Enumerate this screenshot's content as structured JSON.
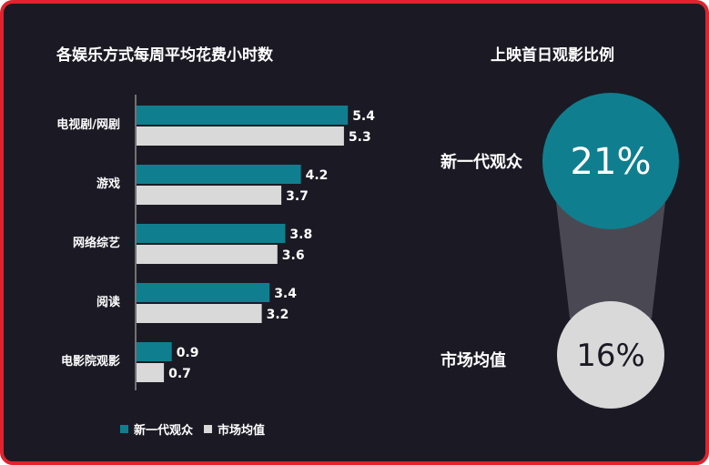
{
  "chart_data": [
    {
      "type": "bar",
      "orientation": "horizontal",
      "title": "各娱乐方式每周平均花费小时数",
      "categories": [
        "电视剧/网剧",
        "游戏",
        "网络综艺",
        "阅读",
        "电影院观影"
      ],
      "series": [
        {
          "name": "新一代观众",
          "values": [
            5.4,
            4.2,
            3.8,
            3.4,
            0.9
          ],
          "color": "#0f7f8f"
        },
        {
          "name": "市场均值",
          "values": [
            5.3,
            3.7,
            3.6,
            3.2,
            0.7
          ],
          "color": "#d9d9d9"
        }
      ],
      "legend": "bottom",
      "grid": false
    },
    {
      "type": "bubble",
      "title": "上映首日观影比例",
      "items": [
        {
          "label": "新一代观众",
          "value": "21%",
          "color": "#0f7f8f"
        },
        {
          "label": "市场均值",
          "value": "16%",
          "color": "#d9d9d9"
        }
      ]
    }
  ],
  "colors": {
    "background": "#1b1a24",
    "frame": "#e0232e",
    "teal": "#0f7f8f",
    "gray": "#d9d9d9"
  }
}
